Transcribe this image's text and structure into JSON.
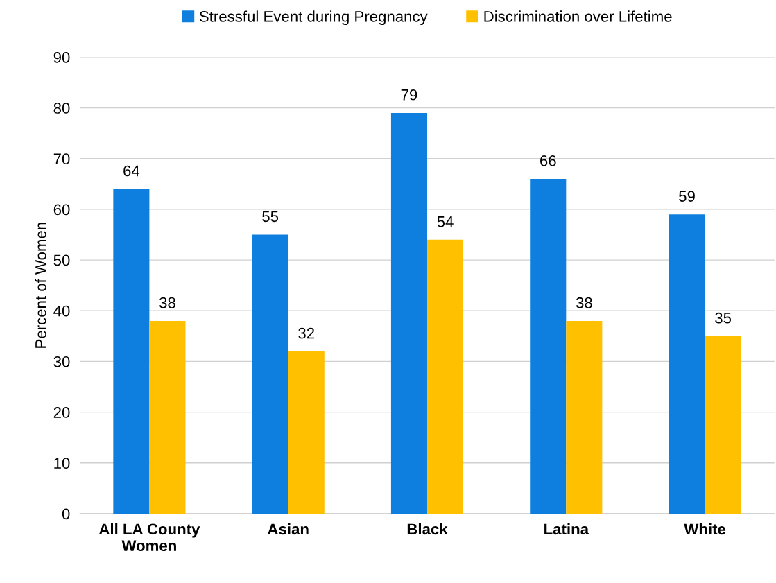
{
  "chart_data": {
    "type": "bar",
    "ylabel": "Percent of Women",
    "categories": [
      "All LA County\nWomen",
      "Asian",
      "Black",
      "Latina",
      "White"
    ],
    "series": [
      {
        "name": "Stressful Event during Pregnancy",
        "color": "#0f7fdf",
        "values": [
          64,
          55,
          79,
          66,
          59
        ]
      },
      {
        "name": "Discrimination over Lifetime",
        "color": "#ffc000",
        "values": [
          38,
          32,
          54,
          38,
          35
        ]
      }
    ],
    "ylim": [
      0,
      90
    ],
    "yticks": [
      0,
      10,
      20,
      30,
      40,
      50,
      60,
      70,
      80,
      90
    ],
    "grid": "y",
    "legend": "top",
    "data_labels": true
  }
}
